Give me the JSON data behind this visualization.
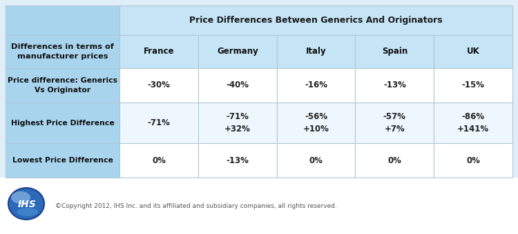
{
  "title": "Price Differences Between Generics And Originators",
  "col0_header": "Differences in terms of\nmanufacturer prices",
  "columns": [
    "France",
    "Germany",
    "Italy",
    "Spain",
    "UK"
  ],
  "row_headers": [
    "Price difference: Generics\nVs Originator",
    "Highest Price Difference",
    "Lowest Price Difference"
  ],
  "cell_data": [
    [
      "-30%",
      "-40%",
      "-16%",
      "-13%",
      "-15%"
    ],
    [
      "-71%",
      "-71%\n+32%",
      "-56%\n+10%",
      "-57%\n+7%",
      "-86%\n+141%"
    ],
    [
      "0%",
      "-13%",
      "0%",
      "0%",
      "0%"
    ]
  ],
  "title_bg": "#c5e4f5",
  "subheader_bg": "#c5e4f5",
  "col0_merged_bg": "#a8d4ee",
  "row_header_bg": "#a8d4ee",
  "cell_bg_odd": "#ffffff",
  "cell_bg_even": "#eef7fd",
  "border_color": "#b0c8d8",
  "footer_bg": "#ffffff",
  "outer_bg": "#e0eef8",
  "footer_text": "©Copyright 2012, IHS Inc. and its affiliated and subsidiary companies, all rights reserved."
}
